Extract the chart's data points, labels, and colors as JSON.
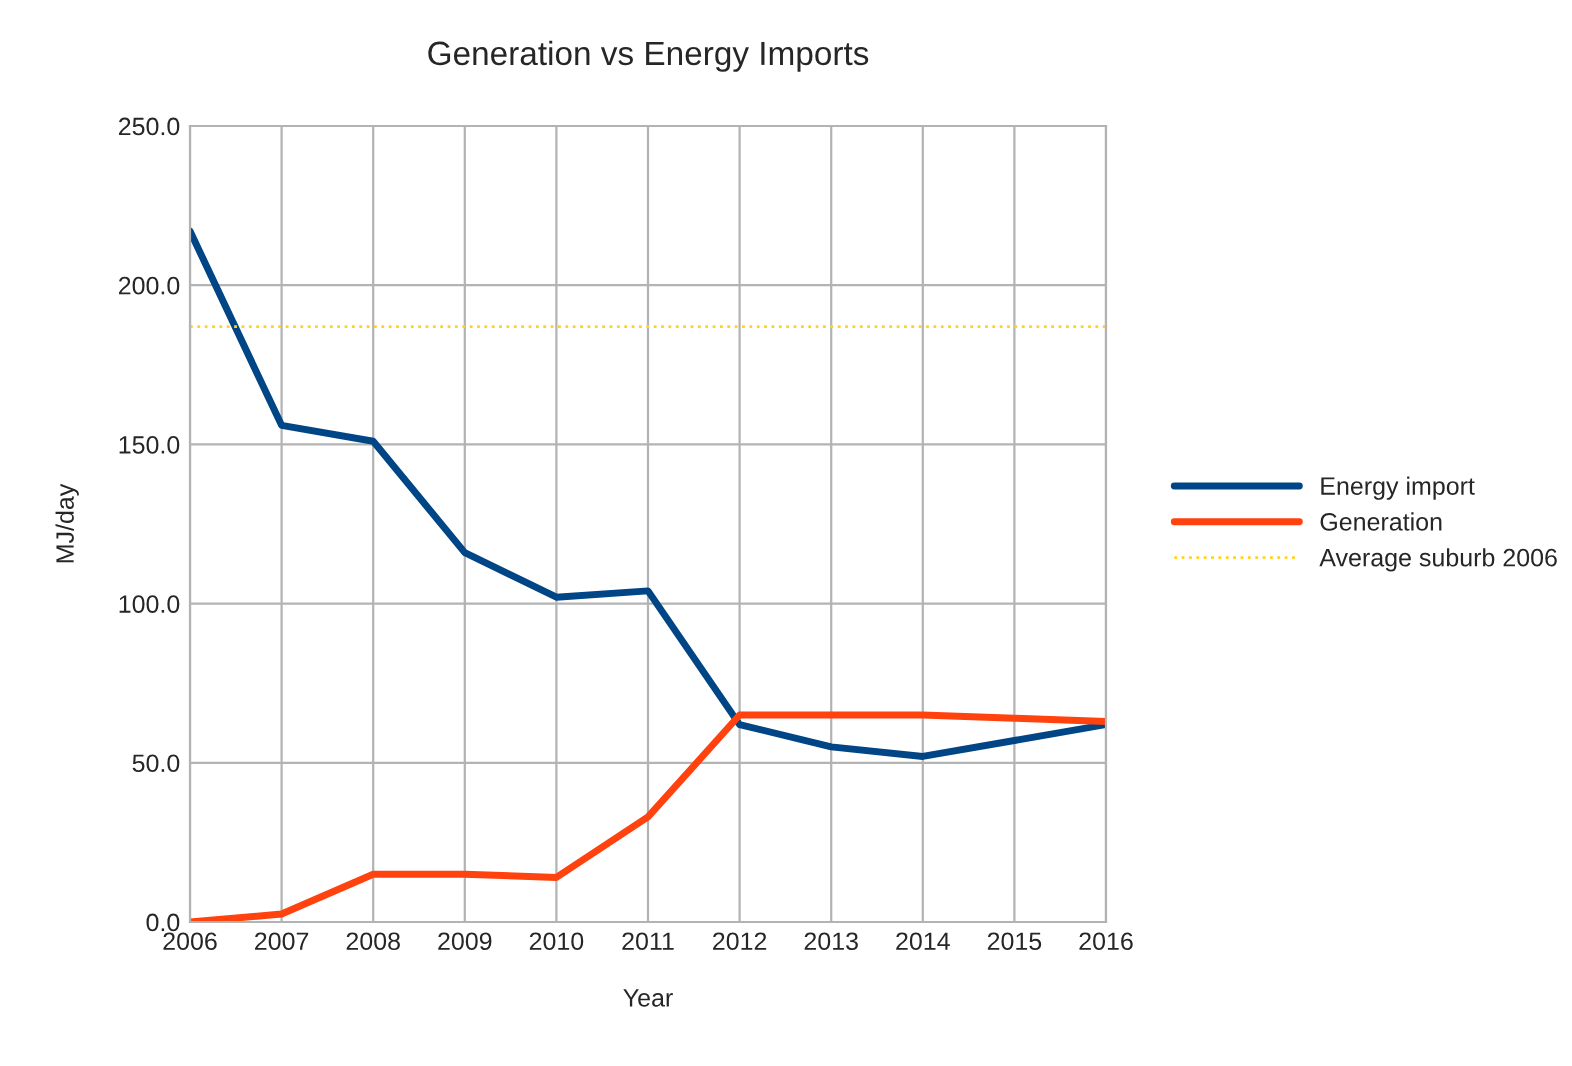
{
  "chart_data": {
    "type": "line",
    "title": "Generation vs Energy Imports",
    "xlabel": "Year",
    "ylabel": "MJ/day",
    "x": [
      2006,
      2007,
      2008,
      2009,
      2010,
      2011,
      2012,
      2013,
      2014,
      2015,
      2016
    ],
    "series": [
      {
        "name": "Energy import",
        "color": "#004586",
        "values": [
          217,
          156,
          151,
          116,
          102,
          104,
          62,
          55,
          52,
          57,
          62
        ]
      },
      {
        "name": "Generation",
        "color": "#ff420e",
        "values": [
          0,
          2.5,
          15,
          15,
          14,
          33,
          65,
          65,
          65,
          64,
          63
        ]
      },
      {
        "name": "Average suburb 2006",
        "color": "#ffd320",
        "line_style": "dotted",
        "values": [
          187,
          187,
          187,
          187,
          187,
          187,
          187,
          187,
          187,
          187,
          187
        ]
      }
    ],
    "xlim": [
      2006,
      2016
    ],
    "xticks": [
      2006,
      2007,
      2008,
      2009,
      2010,
      2011,
      2012,
      2013,
      2014,
      2015,
      2016
    ],
    "ylim": [
      0,
      250
    ],
    "yticks": [
      {
        "value": 0,
        "label": "0.0"
      },
      {
        "value": 50,
        "label": "50.0"
      },
      {
        "value": 100,
        "label": "100.0"
      },
      {
        "value": 150,
        "label": "150.0"
      },
      {
        "value": 200,
        "label": "200.0"
      },
      {
        "value": 250,
        "label": "250.0"
      }
    ],
    "grid": true,
    "legend": "right",
    "line_style": "solid"
  }
}
